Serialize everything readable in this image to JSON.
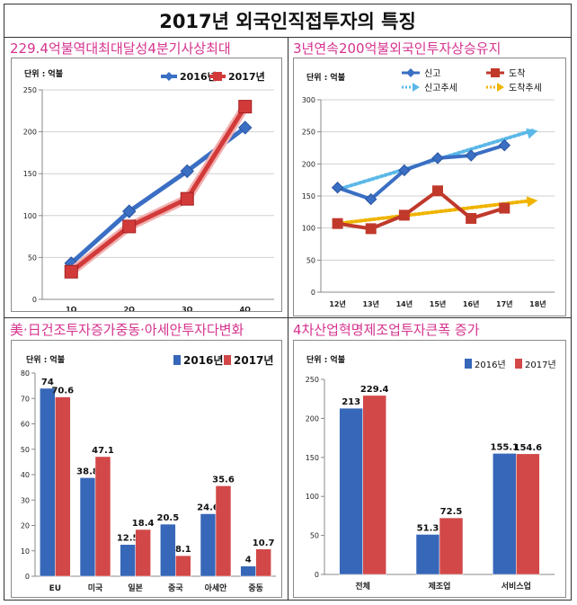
{
  "page_title": "2017년 외국인직접투자의 특징",
  "chart_data": [
    {
      "type": "line",
      "heading": "229.4억불역대최대달성4분기사상최대",
      "unit_label": "단위 : 억불",
      "categories": [
        "1Q",
        "2Q",
        "3Q",
        "4Q"
      ],
      "ylim": [
        0,
        250
      ],
      "yticks": [
        0,
        50,
        100,
        150,
        200,
        250
      ],
      "grid": true,
      "legend": "top-right",
      "series": [
        {
          "name": "2016년",
          "values": [
            43,
            105,
            153,
            205
          ],
          "color": "#3a6fc4"
        },
        {
          "name": "2017년",
          "values": [
            33,
            87,
            120,
            230
          ],
          "color": "#d23a3a"
        }
      ]
    },
    {
      "type": "line",
      "heading": "3년연속200억불외국인투자상승유지",
      "unit_label": "단위 : 억불",
      "categories": [
        "12년",
        "13년",
        "14년",
        "15년",
        "16년",
        "17년",
        "18년"
      ],
      "ylim": [
        0,
        300
      ],
      "yticks": [
        0,
        50,
        100,
        150,
        200,
        250,
        300
      ],
      "grid": true,
      "legend": "top",
      "series": [
        {
          "name": "신고",
          "values": [
            163,
            145,
            190,
            209,
            213,
            229,
            null
          ],
          "color": "#3a6fc4"
        },
        {
          "name": "도착",
          "values": [
            107,
            99,
            120,
            158,
            115,
            131,
            null
          ],
          "color": "#c0392b"
        }
      ],
      "trends": [
        {
          "name": "신고추세",
          "from": [
            0,
            160
          ],
          "to": [
            6,
            252
          ],
          "color": "#5bb8e8"
        },
        {
          "name": "도착추세",
          "from": [
            0,
            107
          ],
          "to": [
            6,
            143
          ],
          "color": "#f0b400"
        }
      ]
    },
    {
      "type": "bar",
      "heading": "美·日건조투자증가중동·아세안투자다변화",
      "unit_label": "단위 : 억불",
      "categories": [
        "EU",
        "미국",
        "일본",
        "중국",
        "아세안",
        "중동"
      ],
      "ylim": [
        0,
        80
      ],
      "yticks": [
        0,
        10,
        20,
        30,
        40,
        50,
        60,
        70,
        80
      ],
      "grid": false,
      "legend": "top-right",
      "series": [
        {
          "name": "2016년",
          "values": [
            74,
            38.8,
            12.5,
            20.5,
            24.6,
            4
          ],
          "labels": [
            "74",
            "38.8",
            "12.5",
            "20.5",
            "24.6",
            "4"
          ],
          "color": "#3767b8"
        },
        {
          "name": "2017년",
          "values": [
            70.6,
            47.1,
            18.4,
            8.1,
            35.6,
            10.7
          ],
          "labels": [
            "70.6",
            "47.1",
            "18.4",
            "8.1",
            "35.6",
            "10.7"
          ],
          "color": "#d24848"
        }
      ]
    },
    {
      "type": "bar",
      "heading": "4차산업혁명제조업투자큰폭 증가",
      "unit_label": "단위 : 억불",
      "categories": [
        "전체",
        "제조업",
        "서비스업"
      ],
      "ylim": [
        0,
        250
      ],
      "yticks": [
        0,
        50,
        100,
        150,
        200,
        250
      ],
      "grid": false,
      "legend": "top-right",
      "series": [
        {
          "name": "2016년",
          "values": [
            213,
            51.3,
            155.1
          ],
          "labels": [
            "213",
            "51.3",
            "155.1"
          ],
          "color": "#3767b8"
        },
        {
          "name": "2017년",
          "values": [
            229.4,
            72.5,
            154.6
          ],
          "labels": [
            "229.4",
            "72.5",
            "154.6"
          ],
          "color": "#d24848"
        }
      ]
    }
  ]
}
